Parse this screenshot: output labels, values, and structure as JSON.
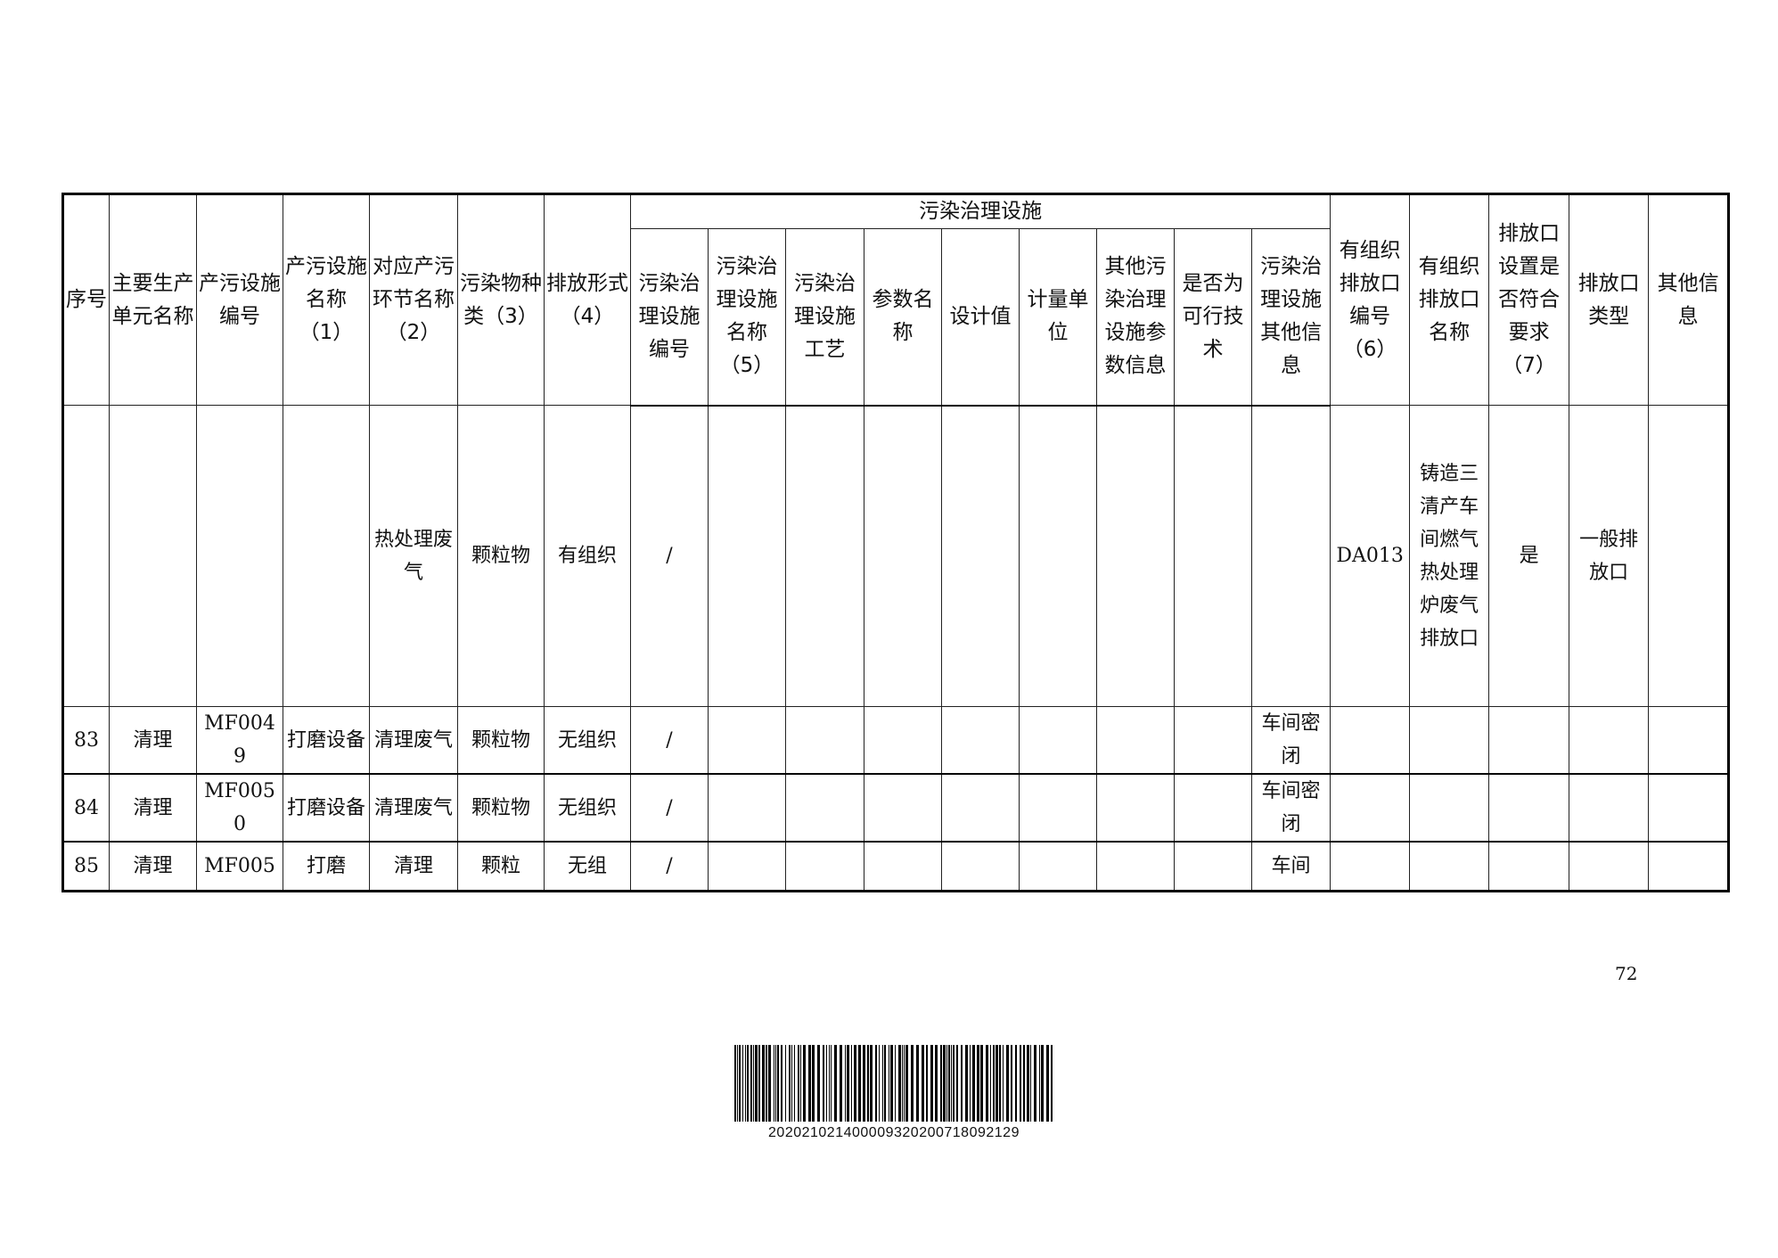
{
  "table": {
    "group_header": "污染治理设施",
    "headers_left": [
      "序号",
      "主要生产单元名称",
      "产污设施编号",
      "产污设施名称（1）",
      "对应产污环节名称（2）",
      "污染物种类（3）",
      "排放形式（4）"
    ],
    "headers_group": [
      "污染治理设施编号",
      "污染治理设施名称（5）",
      "污染治理设施工艺",
      "参数名称",
      "设计值",
      "计量单位",
      "其他污染治理设施参数信息",
      "是否为可行技术",
      "污染治理设施其他信息"
    ],
    "headers_right": [
      "有组织排放口编号（6）",
      "有组织排放口名称",
      "排放口设置是否符合要求（7）",
      "排放口类型",
      "其他信息"
    ],
    "rows": [
      [
        "",
        "",
        "",
        "",
        "热处理废气",
        "颗粒物",
        "有组织",
        "/",
        "",
        "",
        "",
        "",
        "",
        "",
        "",
        "",
        "DA013",
        "铸造三清产车间燃气热处理炉废气排放口",
        "是",
        "一般排放口",
        ""
      ],
      [
        "83",
        "清理",
        "MF0049",
        "打磨设备",
        "清理废气",
        "颗粒物",
        "无组织",
        "/",
        "",
        "",
        "",
        "",
        "",
        "",
        "",
        "车间密闭",
        "",
        "",
        "",
        "",
        ""
      ],
      [
        "84",
        "清理",
        "MF0050",
        "打磨设备",
        "清理废气",
        "颗粒物",
        "无组织",
        "/",
        "",
        "",
        "",
        "",
        "",
        "",
        "",
        "车间密闭",
        "",
        "",
        "",
        "",
        ""
      ],
      [
        "85",
        "清理",
        "MF005",
        "打磨",
        "清理",
        "颗粒",
        "无组",
        "/",
        "",
        "",
        "",
        "",
        "",
        "",
        "",
        "车间",
        "",
        "",
        "",
        "",
        ""
      ]
    ]
  },
  "page_number": "72",
  "barcode": {
    "number": "202021021400009320200718092129"
  }
}
